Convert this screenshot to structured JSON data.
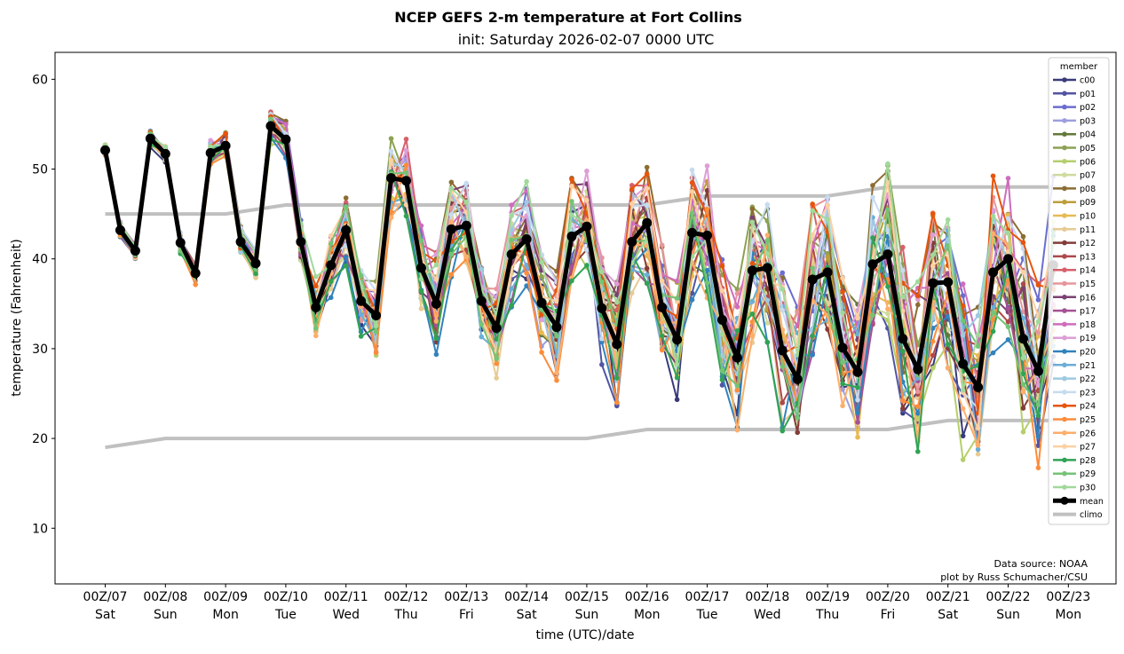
{
  "chart_data": {
    "type": "line",
    "title": "NCEP GEFS 2-m temperature at Fort Collins",
    "subtitle": "init: Saturday 2026-02-07 0000 UTC",
    "xlabel": "time (UTC)/date",
    "ylabel": "temperature (Fahrenheit)",
    "ylim": [
      3.8,
      63
    ],
    "xlim_hours": [
      -20,
      403
    ],
    "yticks": [
      10,
      20,
      30,
      40,
      50,
      60
    ],
    "xticks": [
      {
        "hour": 0,
        "top": "00Z/07",
        "bottom": "Sat"
      },
      {
        "hour": 24,
        "top": "00Z/08",
        "bottom": "Sun"
      },
      {
        "hour": 48,
        "top": "00Z/09",
        "bottom": "Mon"
      },
      {
        "hour": 72,
        "top": "00Z/10",
        "bottom": "Tue"
      },
      {
        "hour": 96,
        "top": "00Z/11",
        "bottom": "Wed"
      },
      {
        "hour": 120,
        "top": "00Z/12",
        "bottom": "Thu"
      },
      {
        "hour": 144,
        "top": "00Z/13",
        "bottom": "Fri"
      },
      {
        "hour": 168,
        "top": "00Z/14",
        "bottom": "Sat"
      },
      {
        "hour": 192,
        "top": "00Z/15",
        "bottom": "Sun"
      },
      {
        "hour": 216,
        "top": "00Z/16",
        "bottom": "Mon"
      },
      {
        "hour": 240,
        "top": "00Z/17",
        "bottom": "Tue"
      },
      {
        "hour": 264,
        "top": "00Z/18",
        "bottom": "Wed"
      },
      {
        "hour": 288,
        "top": "00Z/19",
        "bottom": "Thu"
      },
      {
        "hour": 312,
        "top": "00Z/20",
        "bottom": "Fri"
      },
      {
        "hour": 336,
        "top": "00Z/21",
        "bottom": "Sat"
      },
      {
        "hour": 360,
        "top": "00Z/22",
        "bottom": "Sun"
      },
      {
        "hour": 384,
        "top": "00Z/23",
        "bottom": "Mon"
      }
    ],
    "time_step_hours": 6,
    "mean": {
      "name": "mean",
      "color": "#000000",
      "values": [
        52.1,
        43.2,
        40.9,
        53.4,
        51.7,
        41.8,
        38.4,
        51.8,
        52.6,
        41.9,
        39.5,
        54.8,
        53.3,
        41.9,
        34.6,
        39.3,
        43.2,
        35.3,
        33.7,
        49.0,
        48.7,
        39.0,
        35.0,
        43.3,
        43.7,
        35.3,
        32.3,
        40.5,
        42.2,
        35.1,
        32.4,
        42.5,
        43.6,
        34.5,
        30.5,
        41.9,
        44.0,
        34.6,
        31.0,
        42.9,
        42.6,
        33.2,
        29.0,
        38.7,
        39.0,
        29.8,
        26.6,
        37.7,
        38.5,
        30.1,
        27.4,
        39.4,
        40.5,
        31.1,
        27.7,
        37.3,
        37.4,
        28.3,
        25.7,
        38.5,
        40.0,
        31.1,
        27.5,
        39.3
      ]
    },
    "member_spread": [
      0.6,
      0.8,
      0.8,
      0.9,
      0.9,
      1.2,
      1.2,
      1.3,
      1.4,
      1.6,
      1.6,
      1.8,
      2,
      2.5,
      3,
      3.5,
      3.5,
      3.8,
      4,
      4,
      4.2,
      4.5,
      5,
      5,
      5,
      5,
      5.2,
      5.5,
      5.5,
      5.6,
      6,
      6,
      6,
      6.2,
      6.5,
      6.5,
      6.5,
      6.8,
      7,
      7,
      7,
      7.2,
      7.5,
      7.5,
      7.5,
      7.8,
      8,
      8,
      8.2,
      8.5,
      8.5,
      8.5,
      8.8,
      9,
      9,
      9,
      9.2,
      9.5,
      9.5,
      9.8,
      10,
      10,
      10,
      10.5
    ],
    "climo": {
      "name": "climo",
      "color": "#c0c0c0",
      "hours": [
        0,
        24,
        48,
        72,
        96,
        120,
        144,
        168,
        192,
        216,
        240,
        264,
        288,
        312,
        336,
        360,
        384
      ],
      "low": [
        19,
        20,
        20,
        20,
        20,
        20,
        20,
        20,
        20,
        21,
        21,
        21,
        21,
        21,
        22,
        22,
        22
      ],
      "high": [
        45,
        45,
        45,
        46,
        46,
        46,
        46,
        46,
        46,
        46,
        47,
        47,
        47,
        48,
        48,
        48,
        48
      ]
    },
    "legend": {
      "title": "member",
      "placement": "right",
      "members": [
        {
          "name": "c00",
          "color": "#393b79"
        },
        {
          "name": "p01",
          "color": "#5254a3"
        },
        {
          "name": "p02",
          "color": "#6b6ecf"
        },
        {
          "name": "p03",
          "color": "#9c9ede"
        },
        {
          "name": "p04",
          "color": "#637939"
        },
        {
          "name": "p05",
          "color": "#8ca252"
        },
        {
          "name": "p06",
          "color": "#b5cf6b"
        },
        {
          "name": "p07",
          "color": "#cedb9c"
        },
        {
          "name": "p08",
          "color": "#8c6d31"
        },
        {
          "name": "p09",
          "color": "#bd9e39"
        },
        {
          "name": "p10",
          "color": "#e7ba52"
        },
        {
          "name": "p11",
          "color": "#e7cb94"
        },
        {
          "name": "p12",
          "color": "#843c39"
        },
        {
          "name": "p13",
          "color": "#ad494a"
        },
        {
          "name": "p14",
          "color": "#d6616b"
        },
        {
          "name": "p15",
          "color": "#e7969c"
        },
        {
          "name": "p16",
          "color": "#7b4173"
        },
        {
          "name": "p17",
          "color": "#a55194"
        },
        {
          "name": "p18",
          "color": "#ce6dbd"
        },
        {
          "name": "p19",
          "color": "#de9ed6"
        },
        {
          "name": "p20",
          "color": "#3182bd"
        },
        {
          "name": "p21",
          "color": "#6baed6"
        },
        {
          "name": "p22",
          "color": "#9ecae1"
        },
        {
          "name": "p23",
          "color": "#c6dbef"
        },
        {
          "name": "p24",
          "color": "#e6550d"
        },
        {
          "name": "p25",
          "color": "#fd8d3c"
        },
        {
          "name": "p26",
          "color": "#fdae6b"
        },
        {
          "name": "p27",
          "color": "#fdd0a2"
        },
        {
          "name": "p28",
          "color": "#31a354"
        },
        {
          "name": "p29",
          "color": "#74c476"
        },
        {
          "name": "p30",
          "color": "#a1d99b"
        }
      ]
    },
    "annotations": [
      "Data source: NOAA",
      "plot by Russ Schumacher/CSU"
    ]
  }
}
